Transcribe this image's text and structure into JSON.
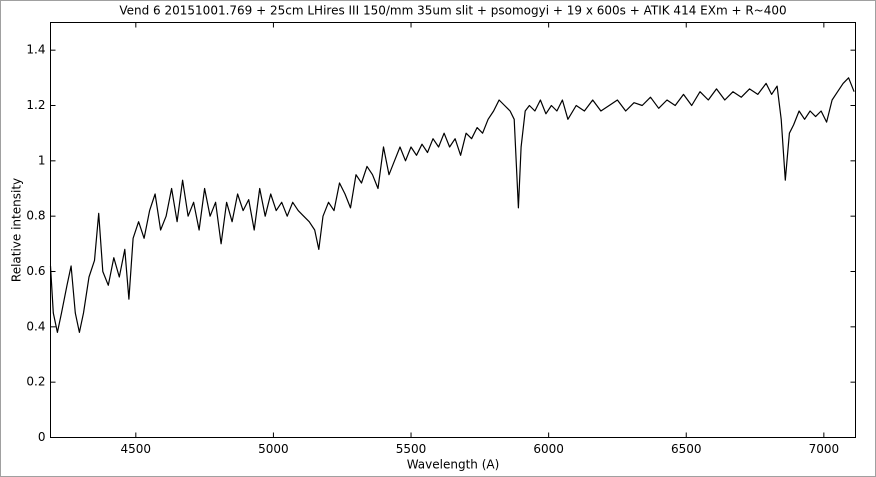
{
  "chart_data": {
    "type": "line",
    "title": "Vend 6  20151001.769 + 25cm LHires III 150/mm 35um slit + psomogyi + 19  x 600s + ATIK 414 EXm + R~400",
    "x_label": "Wavelength (A)",
    "y_label": "Relative intensity",
    "xlim": [
      4190,
      7115
    ],
    "ylim": [
      0,
      1.5
    ],
    "xticks": [
      4500,
      5000,
      5500,
      6000,
      6500,
      7000
    ],
    "yticks": [
      0,
      0.2,
      0.4,
      0.6,
      0.8,
      1,
      1.2,
      1.4
    ],
    "series": [
      {
        "color": "#000000",
        "x": [
          4190,
          4200,
          4215,
          4230,
          4250,
          4265,
          4280,
          4295,
          4310,
          4330,
          4350,
          4365,
          4380,
          4400,
          4420,
          4440,
          4460,
          4475,
          4490,
          4510,
          4530,
          4550,
          4570,
          4590,
          4610,
          4630,
          4650,
          4670,
          4690,
          4710,
          4730,
          4750,
          4770,
          4790,
          4810,
          4830,
          4850,
          4870,
          4890,
          4910,
          4930,
          4950,
          4970,
          4990,
          5010,
          5030,
          5050,
          5070,
          5090,
          5110,
          5130,
          5150,
          5165,
          5180,
          5200,
          5220,
          5240,
          5260,
          5280,
          5300,
          5320,
          5340,
          5360,
          5380,
          5400,
          5420,
          5440,
          5460,
          5480,
          5500,
          5520,
          5540,
          5560,
          5580,
          5600,
          5620,
          5640,
          5660,
          5680,
          5700,
          5720,
          5740,
          5760,
          5780,
          5800,
          5820,
          5840,
          5860,
          5875,
          5890,
          5900,
          5915,
          5930,
          5950,
          5970,
          5990,
          6010,
          6030,
          6050,
          6070,
          6100,
          6130,
          6160,
          6190,
          6220,
          6250,
          6280,
          6310,
          6340,
          6370,
          6400,
          6430,
          6460,
          6490,
          6520,
          6550,
          6580,
          6610,
          6640,
          6670,
          6700,
          6730,
          6760,
          6790,
          6810,
          6830,
          6845,
          6860,
          6875,
          6890,
          6910,
          6930,
          6950,
          6970,
          6990,
          7010,
          7030,
          7050,
          7070,
          7090,
          7110
        ],
        "values": [
          0.62,
          0.45,
          0.38,
          0.45,
          0.55,
          0.62,
          0.45,
          0.38,
          0.45,
          0.58,
          0.64,
          0.81,
          0.6,
          0.55,
          0.65,
          0.58,
          0.68,
          0.5,
          0.72,
          0.78,
          0.72,
          0.82,
          0.88,
          0.75,
          0.8,
          0.9,
          0.78,
          0.93,
          0.8,
          0.85,
          0.75,
          0.9,
          0.8,
          0.85,
          0.7,
          0.85,
          0.78,
          0.88,
          0.82,
          0.86,
          0.75,
          0.9,
          0.8,
          0.88,
          0.82,
          0.85,
          0.8,
          0.85,
          0.82,
          0.8,
          0.78,
          0.75,
          0.68,
          0.8,
          0.85,
          0.82,
          0.92,
          0.88,
          0.83,
          0.95,
          0.92,
          0.98,
          0.95,
          0.9,
          1.05,
          0.95,
          1.0,
          1.05,
          1.0,
          1.05,
          1.02,
          1.06,
          1.03,
          1.08,
          1.05,
          1.1,
          1.05,
          1.08,
          1.02,
          1.1,
          1.08,
          1.12,
          1.1,
          1.15,
          1.18,
          1.22,
          1.2,
          1.18,
          1.15,
          0.83,
          1.05,
          1.18,
          1.2,
          1.18,
          1.22,
          1.17,
          1.2,
          1.18,
          1.22,
          1.15,
          1.2,
          1.18,
          1.22,
          1.18,
          1.2,
          1.22,
          1.18,
          1.21,
          1.2,
          1.23,
          1.19,
          1.22,
          1.2,
          1.24,
          1.2,
          1.25,
          1.22,
          1.26,
          1.22,
          1.25,
          1.23,
          1.26,
          1.24,
          1.28,
          1.24,
          1.27,
          1.15,
          0.93,
          1.1,
          1.13,
          1.18,
          1.15,
          1.18,
          1.16,
          1.18,
          1.14,
          1.22,
          1.25,
          1.28,
          1.3,
          1.25
        ]
      }
    ]
  }
}
